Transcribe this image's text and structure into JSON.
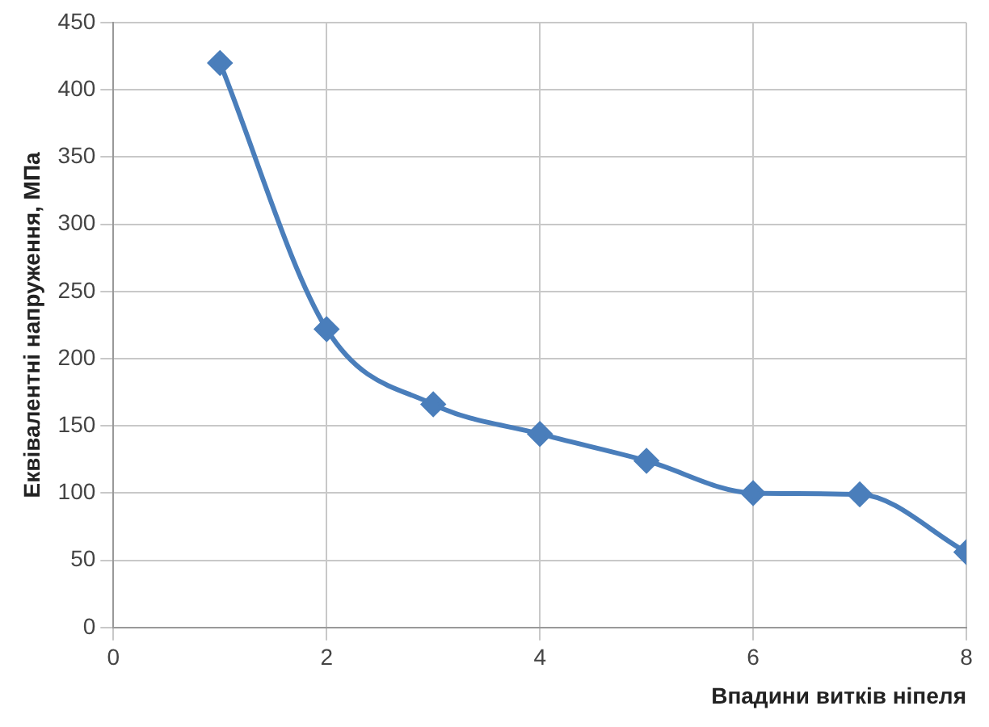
{
  "chart_data": {
    "type": "line",
    "xlabel": "Впадини витків ніпеля",
    "ylabel": "Еквівалентні напруження, МПа",
    "x": [
      1,
      2,
      3,
      4,
      5,
      6,
      7,
      8
    ],
    "series": [
      {
        "color": "#4a7ebb",
        "values": [
          420,
          222,
          166,
          144,
          124,
          100,
          99,
          56
        ]
      }
    ],
    "xlim": [
      0,
      8
    ],
    "xticks": [
      0,
      2,
      4,
      6,
      8
    ],
    "ylim": [
      0,
      450
    ],
    "yticks": [
      0,
      50,
      100,
      150,
      200,
      250,
      300,
      350,
      400,
      450
    ],
    "grid": true,
    "legend": false,
    "marker": "diamond",
    "line_style": "solid"
  }
}
